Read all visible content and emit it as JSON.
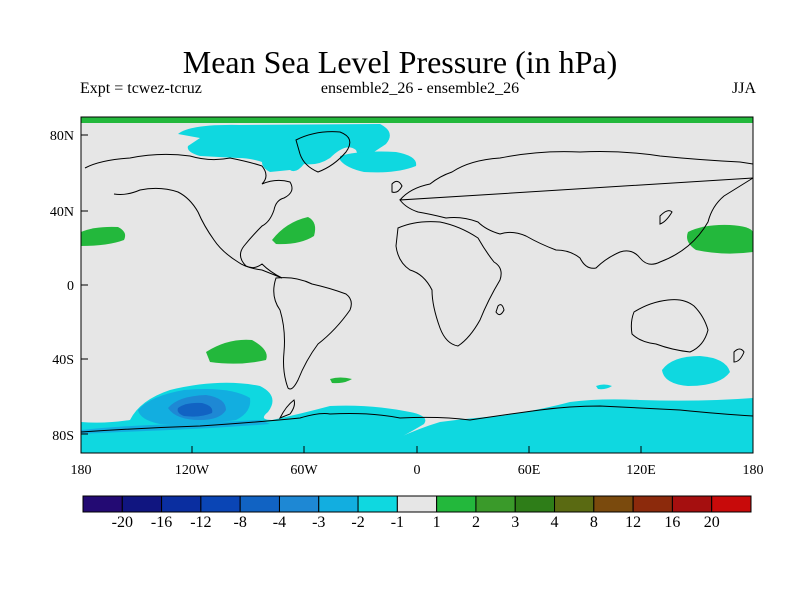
{
  "title": "Mean Sea Level Pressure (in hPa)",
  "subtitle_left": "Expt = tcwez-tcruz",
  "subtitle_center": "ensemble2_26 - ensemble2_26",
  "subtitle_right": "JJA",
  "lat_labels": [
    "80N",
    "40N",
    "0",
    "40S",
    "80S"
  ],
  "lon_labels": [
    "180",
    "120W",
    "60W",
    "0",
    "60E",
    "120E",
    "180"
  ],
  "colorbar": {
    "labels": [
      "-20",
      "-16",
      "-12",
      "-8",
      "-4",
      "-3",
      "-2",
      "-1",
      "1",
      "2",
      "3",
      "4",
      "8",
      "12",
      "16",
      "20"
    ],
    "colors": [
      "#230a73",
      "#101580",
      "#0a2ea0",
      "#0a45b5",
      "#1163c3",
      "#1e88d4",
      "#12aee0",
      "#0fd8e0",
      "#e6e6e6",
      "#23b83c",
      "#3a9a2a",
      "#2e7d18",
      "#5a6a12",
      "#7a4a0d",
      "#8c2a0c",
      "#a50f0f",
      "#c80a0a"
    ]
  },
  "colors": {
    "background": "#e6e6e6",
    "coastline": "#000000",
    "neg1": "#0fd8e0",
    "neg2": "#12aee0",
    "neg3": "#1e88d4",
    "neg4": "#1163c3",
    "pos1": "#23b83c"
  }
}
